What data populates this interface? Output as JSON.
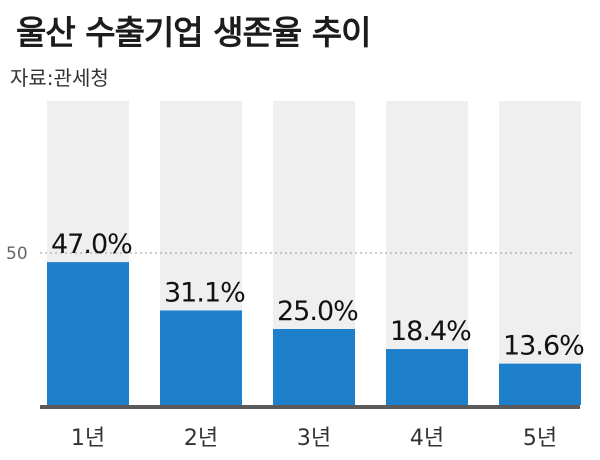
{
  "title": "울산 수출기업 생존율 추이",
  "source": "자료:관세청",
  "chart_data": {
    "type": "bar",
    "categories": [
      "1년",
      "2년",
      "3년",
      "4년",
      "5년"
    ],
    "values": [
      47.0,
      31.1,
      25.0,
      18.4,
      13.6
    ],
    "value_labels": [
      "47.0%",
      "31.1%",
      "25.0%",
      "18.4%",
      "13.6%"
    ],
    "reference_line": {
      "value": 50,
      "label": "50"
    },
    "ylim": [
      0,
      100
    ],
    "grid": false,
    "bar_color": "#1e7fcb",
    "background_bar_color": "#efefef"
  }
}
